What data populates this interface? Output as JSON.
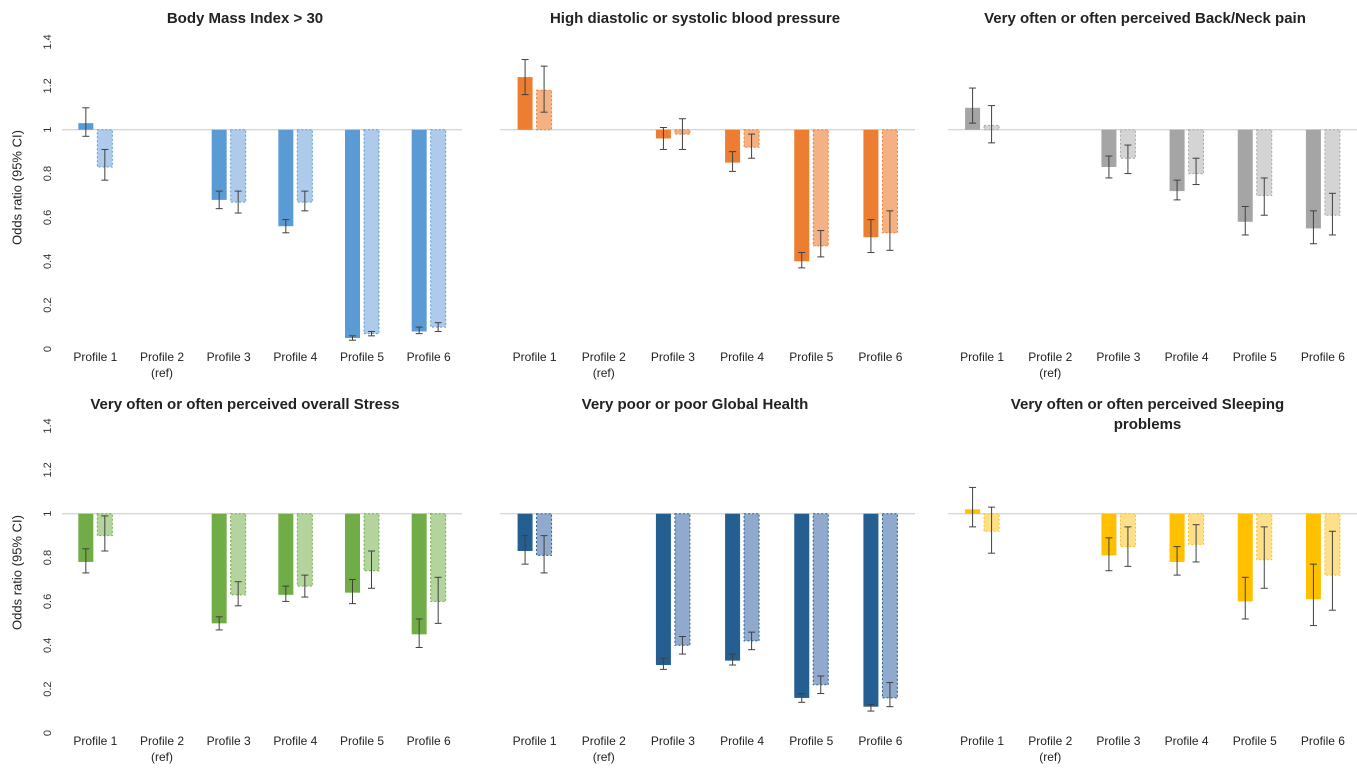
{
  "figure": {
    "ylabel": "Odds ratio (95% CI)"
  },
  "chart_data": [
    {
      "type": "bar",
      "title": "Body Mass Index > 30",
      "ylabel": "Odds ratio (95% CI)",
      "ylim": [
        0,
        1.4
      ],
      "yticks": [
        "0",
        "0.2",
        "0.4",
        "0.6",
        "0.8",
        "1",
        "1.2",
        "1.4"
      ],
      "baseline": 1,
      "categories": [
        [
          "Profile 1"
        ],
        [
          "Profile 2",
          "(ref)"
        ],
        [
          "Profile 3"
        ],
        [
          "Profile 4"
        ],
        [
          "Profile 5"
        ],
        [
          "Profile 6"
        ]
      ],
      "color": "#5b9bd5",
      "color_light": "#aecbeb",
      "series": [
        {
          "values": [
            1.03,
            null,
            0.68,
            0.56,
            0.05,
            0.08
          ],
          "ci_low": [
            0.97,
            null,
            0.64,
            0.53,
            0.04,
            0.07
          ],
          "ci_high": [
            1.1,
            null,
            0.72,
            0.59,
            0.06,
            0.1
          ]
        },
        {
          "values": [
            0.83,
            null,
            0.67,
            0.67,
            0.07,
            0.1
          ],
          "ci_low": [
            0.77,
            null,
            0.62,
            0.63,
            0.06,
            0.08
          ],
          "ci_high": [
            0.91,
            null,
            0.72,
            0.72,
            0.08,
            0.12
          ]
        }
      ]
    },
    {
      "type": "bar",
      "title": "High diastolic or systolic blood pressure",
      "ylim": [
        0,
        1.4
      ],
      "baseline": 1,
      "categories": [
        [
          "Profile 1"
        ],
        [
          "Profile 2",
          "(ref)"
        ],
        [
          "Profile 3"
        ],
        [
          "Profile 4"
        ],
        [
          "Profile 5"
        ],
        [
          "Profile 6"
        ]
      ],
      "color": "#ed7d31",
      "color_light": "#f4b183",
      "series": [
        {
          "values": [
            1.24,
            null,
            0.96,
            0.85,
            0.4,
            0.51
          ],
          "ci_low": [
            1.16,
            null,
            0.91,
            0.81,
            0.37,
            0.44
          ],
          "ci_high": [
            1.32,
            null,
            1.01,
            0.9,
            0.44,
            0.59
          ]
        },
        {
          "values": [
            1.18,
            null,
            0.98,
            0.92,
            0.47,
            0.53
          ],
          "ci_low": [
            1.08,
            null,
            0.91,
            0.87,
            0.42,
            0.45
          ],
          "ci_high": [
            1.29,
            null,
            1.05,
            0.98,
            0.54,
            0.63
          ]
        }
      ]
    },
    {
      "type": "bar",
      "title": "Very often or often perceived Back/Neck pain",
      "ylim": [
        0,
        1.4
      ],
      "baseline": 1,
      "categories": [
        [
          "Profile 1"
        ],
        [
          "Profile 2",
          "(ref)"
        ],
        [
          "Profile 3"
        ],
        [
          "Profile 4"
        ],
        [
          "Profile 5"
        ],
        [
          "Profile 6"
        ]
      ],
      "color": "#a5a5a5",
      "color_light": "#d4d4d4",
      "series": [
        {
          "values": [
            1.1,
            null,
            0.83,
            0.72,
            0.58,
            0.55
          ],
          "ci_low": [
            1.03,
            null,
            0.78,
            0.68,
            0.52,
            0.48
          ],
          "ci_high": [
            1.19,
            null,
            0.88,
            0.77,
            0.65,
            0.63
          ]
        },
        {
          "values": [
            1.02,
            null,
            0.87,
            0.8,
            0.7,
            0.61
          ],
          "ci_low": [
            0.94,
            null,
            0.8,
            0.75,
            0.61,
            0.52
          ],
          "ci_high": [
            1.11,
            null,
            0.93,
            0.87,
            0.78,
            0.71
          ]
        }
      ]
    },
    {
      "type": "bar",
      "title": "Very often or often perceived overall Stress",
      "ylim": [
        0,
        1.4
      ],
      "yticks": [
        "0",
        "0.2",
        "0.4",
        "0.6",
        "0.8",
        "1",
        "1.2",
        "1.4"
      ],
      "baseline": 1,
      "categories": [
        [
          "Profile 1"
        ],
        [
          "Profile 2",
          "(ref)"
        ],
        [
          "Profile 3"
        ],
        [
          "Profile 4"
        ],
        [
          "Profile 5"
        ],
        [
          "Profile 6"
        ]
      ],
      "color": "#70ad47",
      "color_light": "#b3d59d",
      "series": [
        {
          "values": [
            0.78,
            null,
            0.5,
            0.63,
            0.64,
            0.45
          ],
          "ci_low": [
            0.73,
            null,
            0.47,
            0.6,
            0.59,
            0.39
          ],
          "ci_high": [
            0.84,
            null,
            0.53,
            0.67,
            0.7,
            0.52
          ]
        },
        {
          "values": [
            0.9,
            null,
            0.63,
            0.67,
            0.74,
            0.6
          ],
          "ci_low": [
            0.83,
            null,
            0.58,
            0.62,
            0.66,
            0.5
          ],
          "ci_high": [
            0.99,
            null,
            0.69,
            0.72,
            0.83,
            0.71
          ]
        }
      ]
    },
    {
      "type": "bar",
      "title": "Very poor or poor Global Health",
      "ylim": [
        0,
        1.4
      ],
      "baseline": 1,
      "categories": [
        [
          "Profile 1"
        ],
        [
          "Profile 2",
          "(ref)"
        ],
        [
          "Profile 3"
        ],
        [
          "Profile 4"
        ],
        [
          "Profile 5"
        ],
        [
          "Profile 6"
        ]
      ],
      "color": "#255e91",
      "color_light": "#8faacd",
      "series": [
        {
          "values": [
            0.83,
            null,
            0.31,
            0.33,
            0.16,
            0.12
          ],
          "ci_low": [
            0.77,
            null,
            0.29,
            0.31,
            0.14,
            0.1
          ],
          "ci_high": [
            0.9,
            null,
            0.34,
            0.36,
            0.18,
            0.13
          ]
        },
        {
          "values": [
            0.81,
            null,
            0.4,
            0.42,
            0.22,
            0.16
          ],
          "ci_low": [
            0.73,
            null,
            0.36,
            0.38,
            0.18,
            0.12
          ],
          "ci_high": [
            0.9,
            null,
            0.44,
            0.46,
            0.26,
            0.23
          ]
        }
      ]
    },
    {
      "type": "bar",
      "title": "Very often or often perceived Sleeping problems",
      "ylim": [
        0,
        1.4
      ],
      "baseline": 1,
      "categories": [
        [
          "Profile 1"
        ],
        [
          "Profile 2",
          "(ref)"
        ],
        [
          "Profile 3"
        ],
        [
          "Profile 4"
        ],
        [
          "Profile 5"
        ],
        [
          "Profile 6"
        ]
      ],
      "color": "#ffc000",
      "color_light": "#ffe08a",
      "series": [
        {
          "values": [
            1.02,
            null,
            0.81,
            0.78,
            0.6,
            0.61
          ],
          "ci_low": [
            0.94,
            null,
            0.74,
            0.72,
            0.52,
            0.49
          ],
          "ci_high": [
            1.12,
            null,
            0.89,
            0.85,
            0.71,
            0.77
          ]
        },
        {
          "values": [
            0.92,
            null,
            0.85,
            0.86,
            0.79,
            0.72
          ],
          "ci_low": [
            0.82,
            null,
            0.76,
            0.78,
            0.66,
            0.56
          ],
          "ci_high": [
            1.03,
            null,
            0.94,
            0.95,
            0.94,
            0.92
          ]
        }
      ]
    }
  ]
}
